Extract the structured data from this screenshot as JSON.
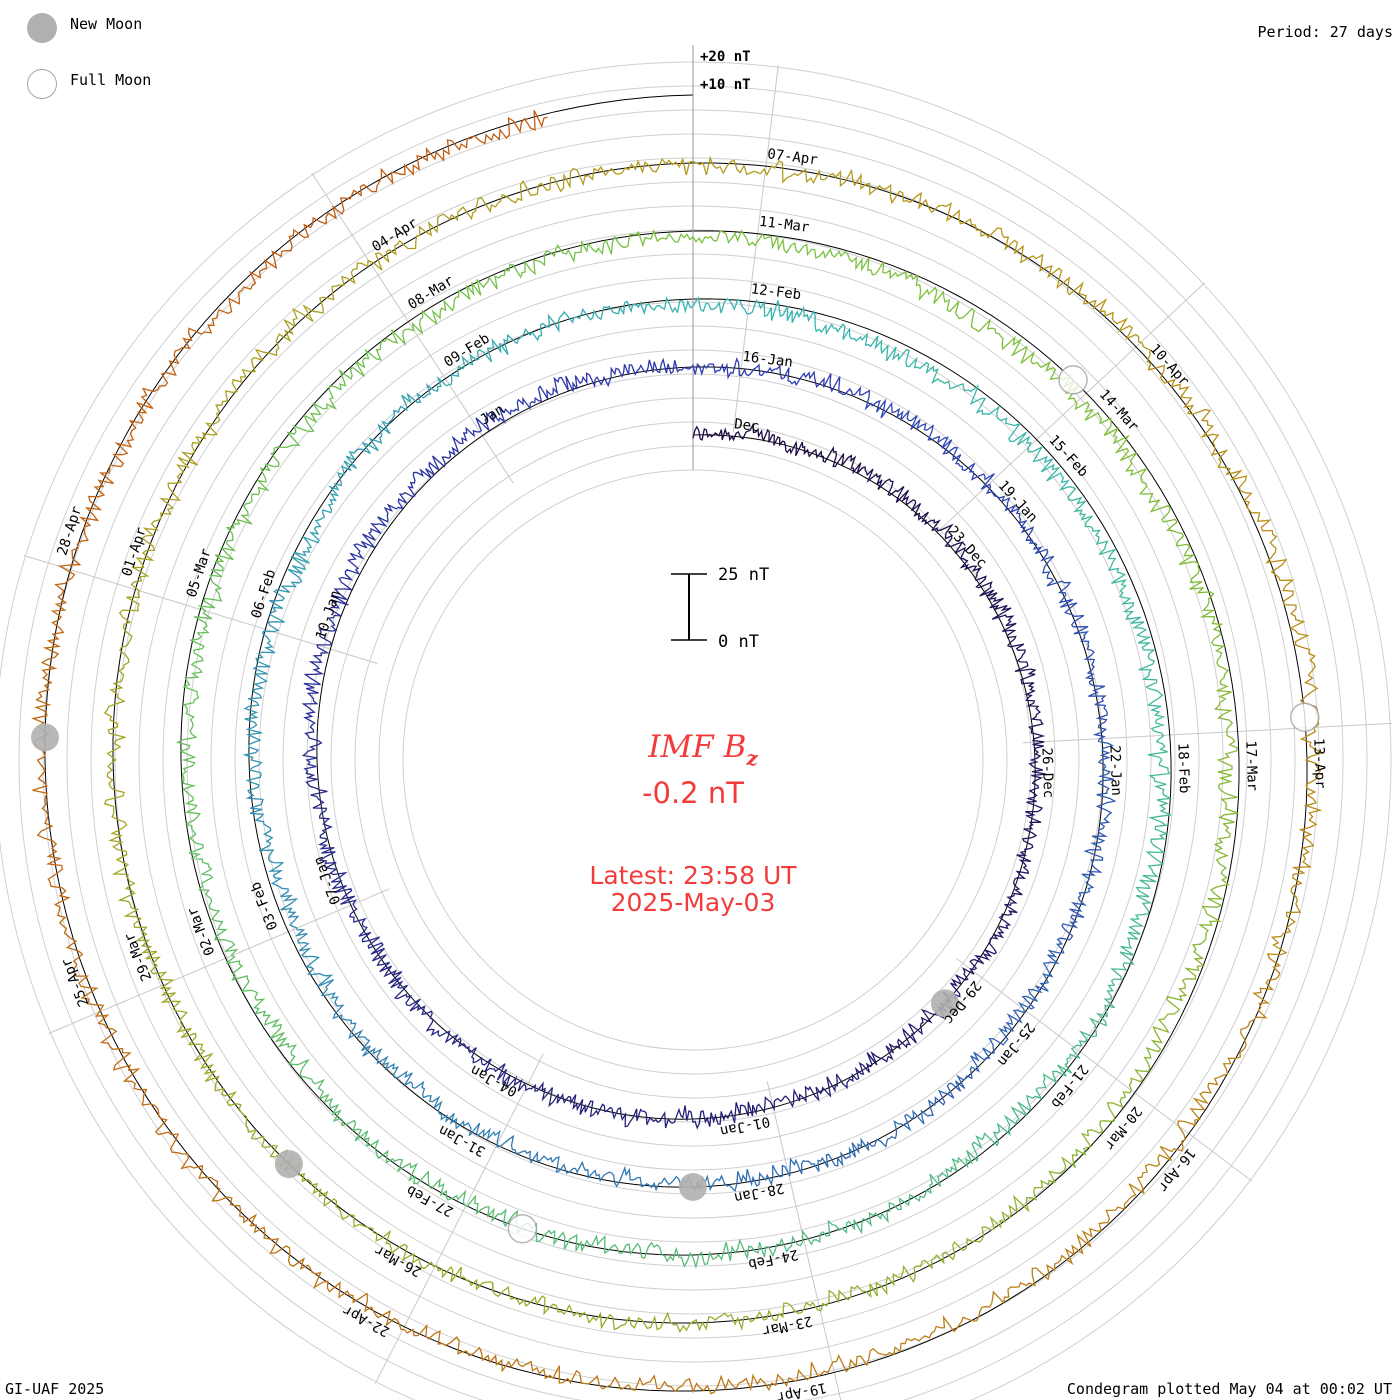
{
  "legend": {
    "new_moon_label": "New Moon",
    "full_moon_label": "Full Moon",
    "new_moon_color": "#b0b0b0",
    "full_moon_color": "#ffffff"
  },
  "period_label": "Period: 27 days",
  "credit": "GI-UAF 2025",
  "plotted_label": "Condegram plotted May 04 at 00:02 UT",
  "title": {
    "parameter": "IMF B",
    "subscript": "z",
    "current_value": "-0.2 nT",
    "latest_time": "Latest: 23:58 UT",
    "latest_date": "2025-May-03",
    "color": "#f23c3c"
  },
  "scale_bar": {
    "top_label": "25 nT",
    "bottom_label": "0 nT",
    "value_nt": 25
  },
  "reference_labels": [
    "+20 nT",
    "+10 nT"
  ],
  "chart_data": {
    "type": "line",
    "layout": "condegram-spiral",
    "period_days": 27,
    "parameter": "IMF Bz",
    "unit": "nT",
    "latest_value_nt": -0.2,
    "date_labels": [
      {
        "ring": 0,
        "label": "Dec",
        "angle": 7
      },
      {
        "ring": 0,
        "label": "23-Dec",
        "angle": 48
      },
      {
        "ring": 0,
        "label": "26-Dec",
        "angle": 88
      },
      {
        "ring": 0,
        "label": "29-Dec",
        "angle": 128
      },
      {
        "ring": 0,
        "label": "01-Jan",
        "angle": 168
      },
      {
        "ring": 0,
        "label": "04-Jan",
        "angle": 208
      },
      {
        "ring": 0,
        "label": "07-Jan",
        "angle": 248
      },
      {
        "ring": 0,
        "label": "10-Jan",
        "angle": 288
      },
      {
        "ring": 0,
        "label": "Jan",
        "angle": 328
      },
      {
        "ring": 1,
        "label": "16-Jan",
        "angle": 7
      },
      {
        "ring": 1,
        "label": "19-Jan",
        "angle": 48
      },
      {
        "ring": 1,
        "label": "22-Jan",
        "angle": 88
      },
      {
        "ring": 1,
        "label": "25-Jan",
        "angle": 128
      },
      {
        "ring": 1,
        "label": "28-Jan",
        "angle": 168
      },
      {
        "ring": 1,
        "label": "31-Jan",
        "angle": 208
      },
      {
        "ring": 1,
        "label": "03-Feb",
        "angle": 248
      },
      {
        "ring": 1,
        "label": "06-Feb",
        "angle": 288
      },
      {
        "ring": 1,
        "label": "09-Feb",
        "angle": 328
      },
      {
        "ring": 2,
        "label": "12-Feb",
        "angle": 7
      },
      {
        "ring": 2,
        "label": "15-Feb",
        "angle": 48
      },
      {
        "ring": 2,
        "label": "18-Feb",
        "angle": 88
      },
      {
        "ring": 2,
        "label": "21-Feb",
        "angle": 128
      },
      {
        "ring": 2,
        "label": "24-Feb",
        "angle": 168
      },
      {
        "ring": 2,
        "label": "27-Feb",
        "angle": 208
      },
      {
        "ring": 2,
        "label": "02-Mar",
        "angle": 248
      },
      {
        "ring": 2,
        "label": "05-Mar",
        "angle": 288
      },
      {
        "ring": 2,
        "label": "08-Mar",
        "angle": 328
      },
      {
        "ring": 3,
        "label": "11-Mar",
        "angle": 7
      },
      {
        "ring": 3,
        "label": "14-Mar",
        "angle": 48
      },
      {
        "ring": 3,
        "label": "17-Mar",
        "angle": 88
      },
      {
        "ring": 3,
        "label": "20-Mar",
        "angle": 128
      },
      {
        "ring": 3,
        "label": "23-Mar",
        "angle": 168
      },
      {
        "ring": 3,
        "label": "26-Mar",
        "angle": 208
      },
      {
        "ring": 3,
        "label": "29-Mar",
        "angle": 248
      },
      {
        "ring": 3,
        "label": "01-Apr",
        "angle": 288
      },
      {
        "ring": 3,
        "label": "04-Apr",
        "angle": 328
      },
      {
        "ring": 4,
        "label": "07-Apr",
        "angle": 7
      },
      {
        "ring": 4,
        "label": "10-Apr",
        "angle": 48
      },
      {
        "ring": 4,
        "label": "13-Apr",
        "angle": 88
      },
      {
        "ring": 4,
        "label": "16-Apr",
        "angle": 128
      },
      {
        "ring": 4,
        "label": "19-Apr",
        "angle": 168
      },
      {
        "ring": 4,
        "label": "22-Apr",
        "angle": 208
      },
      {
        "ring": 4,
        "label": "25-Apr",
        "angle": 248
      },
      {
        "ring": 4,
        "label": "28-Apr",
        "angle": 288
      }
    ],
    "moon_phases": [
      {
        "type": "new",
        "angle": 134,
        "ring": 0
      },
      {
        "type": "new",
        "angle": 180,
        "ring": 1
      },
      {
        "type": "new",
        "angle": 225,
        "ring": 3
      },
      {
        "type": "new",
        "angle": 272,
        "ring": 4
      },
      {
        "type": "full",
        "angle": 45,
        "ring": 3
      },
      {
        "type": "full",
        "angle": 86,
        "ring": 4
      },
      {
        "type": "full",
        "angle": 200,
        "ring": 2
      }
    ],
    "series_colors": [
      "#1e0b45",
      "#2e3cb4",
      "#36b6b0",
      "#7ac13c",
      "#b59a1c",
      "#c3540f"
    ]
  }
}
